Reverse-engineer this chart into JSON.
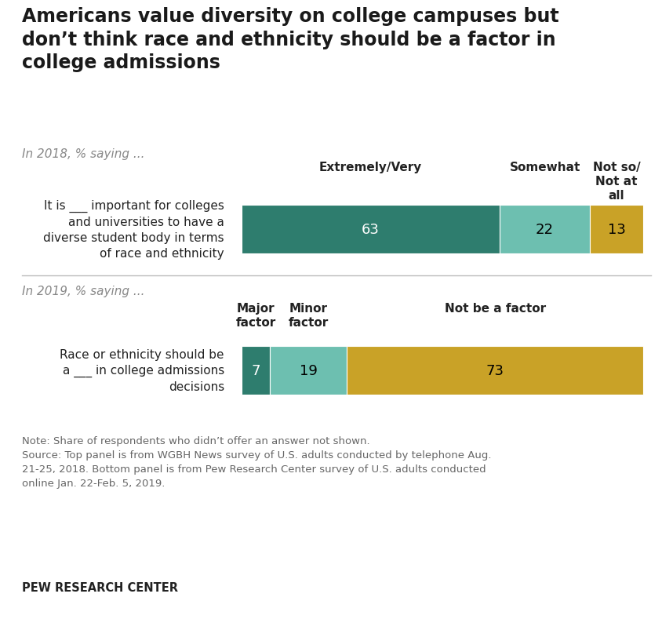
{
  "title": "Americans value diversity on college campuses but\ndon’t think race and ethnicity should be a factor in\ncollege admissions",
  "subtitle1": "In 2018, % saying ...",
  "subtitle2": "In 2019, % saying ...",
  "bar1_label": "It is ___ important for colleges\nand universities to have a\ndiverse student body in terms\nof race and ethnicity",
  "bar2_label": "Race or ethnicity should be\na ___ in college admissions\ndecisions",
  "bar1_values": [
    63,
    22,
    13
  ],
  "bar2_values": [
    7,
    19,
    73
  ],
  "bar1_colors": [
    "#2e7d6e",
    "#6dbfb0",
    "#c9a227"
  ],
  "bar2_colors": [
    "#2e7d6e",
    "#6dbfb0",
    "#c9a227"
  ],
  "bar1_headers": [
    "Extremely/Very",
    "Somewhat",
    "Not so/\nNot at\nall"
  ],
  "bar2_headers": [
    "Major\nfactor",
    "Minor\nfactor",
    "Not be a factor"
  ],
  "note_line1": "Note: Share of respondents who didn’t offer an answer not shown.",
  "note_line2": "Source: Top panel is from WGBH News survey of U.S. adults conducted by telephone Aug.",
  "note_line3": "21-25, 2018. Bottom panel is from Pew Research Center survey of U.S. adults conducted",
  "note_line4": "online Jan. 22-Feb. 5, 2019.",
  "footer": "PEW RESEARCH CENTER",
  "bg_color": "#ffffff",
  "title_color": "#1a1a1a",
  "subtitle_color": "#888888",
  "label_color": "#222222",
  "note_color": "#666666"
}
